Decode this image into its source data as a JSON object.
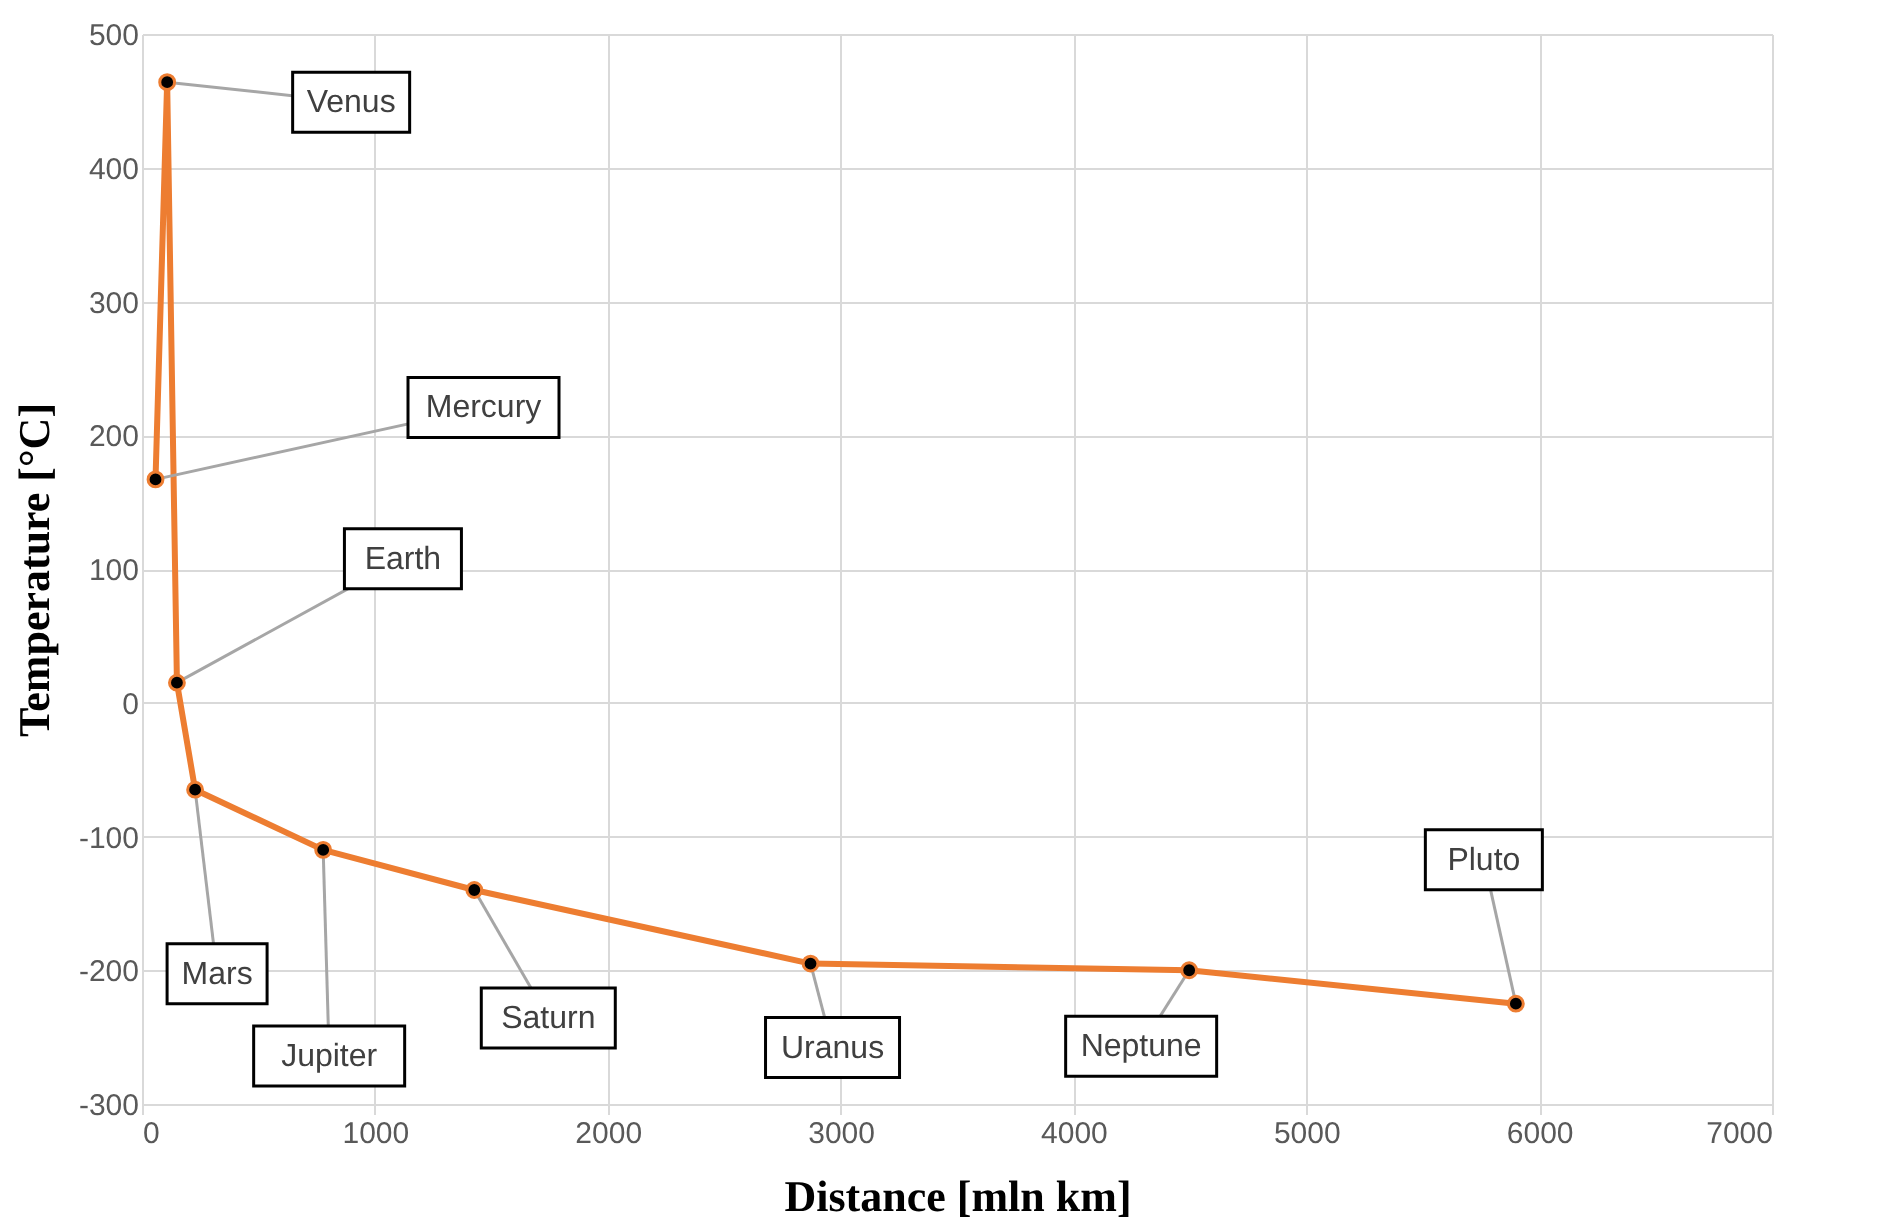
{
  "chart_data": {
    "type": "line",
    "xlabel": "Distance [mln km]",
    "ylabel": "Temperature  [°C]",
    "x": [
      58,
      108,
      150,
      228,
      778,
      1427,
      2871,
      4497,
      5900
    ],
    "series": [
      {
        "color": "#ed7d31",
        "values": [
          167,
          464,
          15,
          -65,
          -110,
          -140,
          -195,
          -200,
          -225
        ]
      }
    ],
    "xlim": [
      0,
      7000
    ],
    "xticks": [
      0,
      1000,
      2000,
      3000,
      4000,
      5000,
      6000,
      7000
    ],
    "ylim": [
      -300,
      500
    ],
    "yticks": [
      -300,
      -200,
      -100,
      0,
      100,
      200,
      300,
      400,
      500
    ],
    "grid": true,
    "marker": "circle",
    "line_style": "solid",
    "annotations": [
      {
        "text": "Mercury",
        "x": 58,
        "y": 167
      },
      {
        "text": "Venus",
        "x": 108,
        "y": 464
      },
      {
        "text": "Earth",
        "x": 150,
        "y": 15
      },
      {
        "text": "Mars",
        "x": 228,
        "y": -65
      },
      {
        "text": "Jupiter",
        "x": 778,
        "y": -110
      },
      {
        "text": "Saturn",
        "x": 1427,
        "y": -140
      },
      {
        "text": "Uranus",
        "x": 2871,
        "y": -195
      },
      {
        "text": "Neptune",
        "x": 4497,
        "y": -200
      },
      {
        "text": "Pluto",
        "x": 5900,
        "y": -225
      }
    ]
  }
}
